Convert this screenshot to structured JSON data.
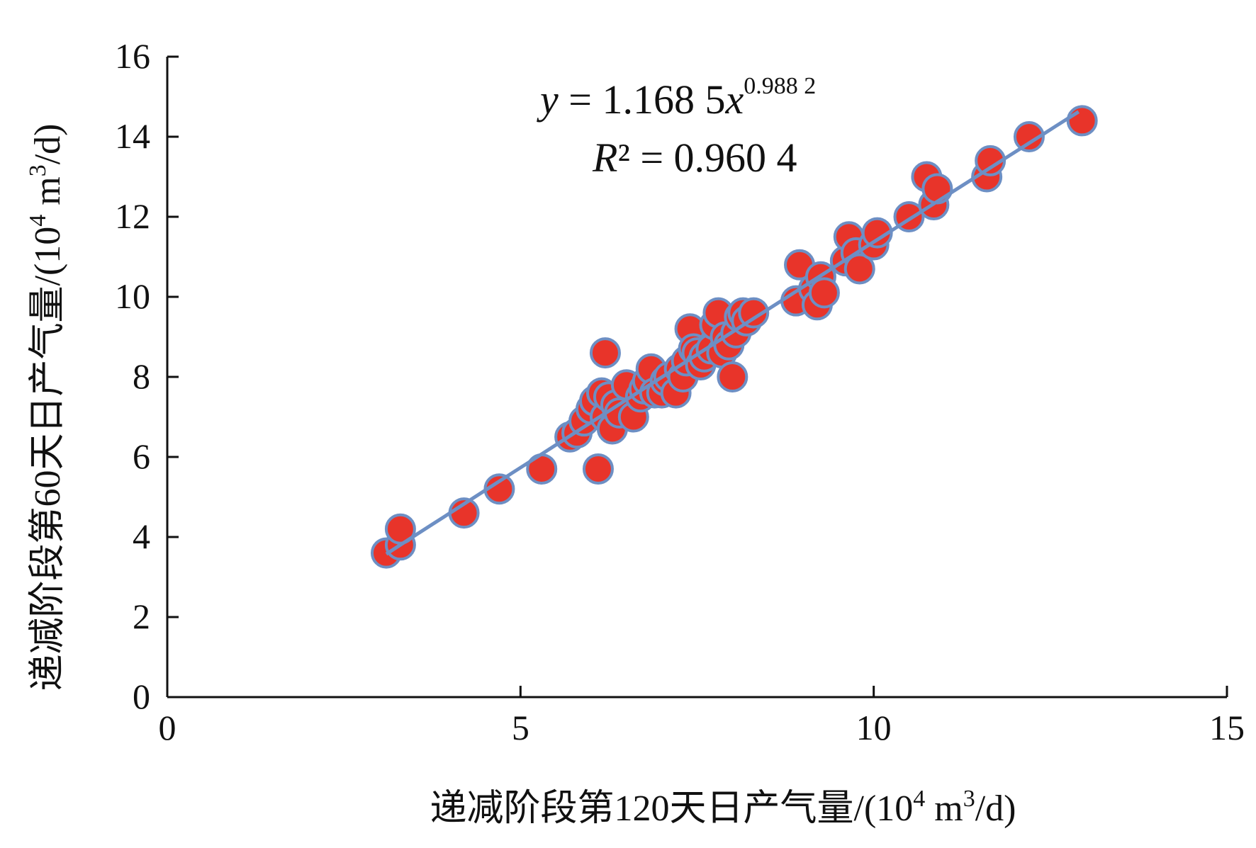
{
  "chart_data": {
    "type": "scatter",
    "xlabel": {
      "prefix": "递减阶段第120天日产气量/(10",
      "sup1": "4",
      "mid": " m",
      "sup2": "3",
      "suffix": "/d)"
    },
    "ylabel": {
      "prefix": "递减阶段第60天日产气量/(10",
      "sup1": "4",
      "mid": " m",
      "sup2": "3",
      "suffix": "/d)"
    },
    "xlim": [
      0,
      15
    ],
    "ylim": [
      0,
      16
    ],
    "x_ticks": [
      0,
      5,
      10,
      15
    ],
    "y_ticks": [
      0,
      2,
      4,
      6,
      8,
      10,
      12,
      14,
      16
    ],
    "x_tick_labels": [
      "0",
      "5",
      "10",
      "15"
    ],
    "y_tick_labels": [
      "0",
      "2",
      "4",
      "6",
      "8",
      "10",
      "12",
      "14",
      "16"
    ],
    "marker_color": "#e8342a",
    "marker_edge_color": "#6d8fc4",
    "trend_color": "#6d8fc4",
    "trendline": {
      "type": "power",
      "a": 1.1685,
      "b": 0.9882,
      "x_range": [
        3.1,
        12.9
      ],
      "equation": {
        "lhs": "y",
        "eq": " = 1.168 5",
        "var": "x",
        "exp": "0.988 2"
      },
      "r2": {
        "lhs": "R",
        "rest": "² = 0.960 4"
      }
    },
    "points": [
      {
        "x": 3.1,
        "y": 3.6
      },
      {
        "x": 3.3,
        "y": 3.8
      },
      {
        "x": 3.3,
        "y": 4.2
      },
      {
        "x": 4.2,
        "y": 4.6
      },
      {
        "x": 4.7,
        "y": 5.2
      },
      {
        "x": 5.3,
        "y": 5.7
      },
      {
        "x": 5.7,
        "y": 6.5
      },
      {
        "x": 5.8,
        "y": 6.6
      },
      {
        "x": 5.9,
        "y": 6.9
      },
      {
        "x": 6.0,
        "y": 7.2
      },
      {
        "x": 6.05,
        "y": 7.4
      },
      {
        "x": 6.1,
        "y": 5.7
      },
      {
        "x": 6.15,
        "y": 7.6
      },
      {
        "x": 6.2,
        "y": 7.0
      },
      {
        "x": 6.2,
        "y": 8.6
      },
      {
        "x": 6.25,
        "y": 7.5
      },
      {
        "x": 6.3,
        "y": 6.7
      },
      {
        "x": 6.35,
        "y": 7.3
      },
      {
        "x": 6.4,
        "y": 7.1
      },
      {
        "x": 6.5,
        "y": 7.8
      },
      {
        "x": 6.6,
        "y": 7.0
      },
      {
        "x": 6.7,
        "y": 7.5
      },
      {
        "x": 6.75,
        "y": 7.7
      },
      {
        "x": 6.8,
        "y": 7.9
      },
      {
        "x": 6.85,
        "y": 8.2
      },
      {
        "x": 6.9,
        "y": 7.6
      },
      {
        "x": 7.0,
        "y": 7.6
      },
      {
        "x": 7.05,
        "y": 7.9
      },
      {
        "x": 7.1,
        "y": 8.0
      },
      {
        "x": 7.2,
        "y": 7.6
      },
      {
        "x": 7.25,
        "y": 8.2
      },
      {
        "x": 7.3,
        "y": 8.0
      },
      {
        "x": 7.35,
        "y": 8.4
      },
      {
        "x": 7.4,
        "y": 9.2
      },
      {
        "x": 7.45,
        "y": 8.7
      },
      {
        "x": 7.5,
        "y": 8.6
      },
      {
        "x": 7.55,
        "y": 8.3
      },
      {
        "x": 7.6,
        "y": 8.5
      },
      {
        "x": 7.7,
        "y": 8.7
      },
      {
        "x": 7.75,
        "y": 9.3
      },
      {
        "x": 7.8,
        "y": 9.6
      },
      {
        "x": 7.85,
        "y": 8.6
      },
      {
        "x": 7.9,
        "y": 9.0
      },
      {
        "x": 7.95,
        "y": 8.8
      },
      {
        "x": 8.0,
        "y": 8.0
      },
      {
        "x": 8.05,
        "y": 9.1
      },
      {
        "x": 8.1,
        "y": 9.5
      },
      {
        "x": 8.15,
        "y": 9.6
      },
      {
        "x": 8.2,
        "y": 9.4
      },
      {
        "x": 8.3,
        "y": 9.6
      },
      {
        "x": 8.9,
        "y": 9.9
      },
      {
        "x": 8.95,
        "y": 10.8
      },
      {
        "x": 9.15,
        "y": 10.2
      },
      {
        "x": 9.2,
        "y": 9.8
      },
      {
        "x": 9.25,
        "y": 10.5
      },
      {
        "x": 9.3,
        "y": 10.1
      },
      {
        "x": 9.6,
        "y": 10.9
      },
      {
        "x": 9.65,
        "y": 11.5
      },
      {
        "x": 9.75,
        "y": 11.1
      },
      {
        "x": 9.8,
        "y": 10.7
      },
      {
        "x": 10.0,
        "y": 11.3
      },
      {
        "x": 10.05,
        "y": 11.6
      },
      {
        "x": 10.5,
        "y": 12.0
      },
      {
        "x": 10.75,
        "y": 13.0
      },
      {
        "x": 10.85,
        "y": 12.3
      },
      {
        "x": 10.9,
        "y": 12.7
      },
      {
        "x": 11.6,
        "y": 13.0
      },
      {
        "x": 11.65,
        "y": 13.4
      },
      {
        "x": 12.2,
        "y": 14.0
      },
      {
        "x": 12.95,
        "y": 14.4
      }
    ]
  }
}
